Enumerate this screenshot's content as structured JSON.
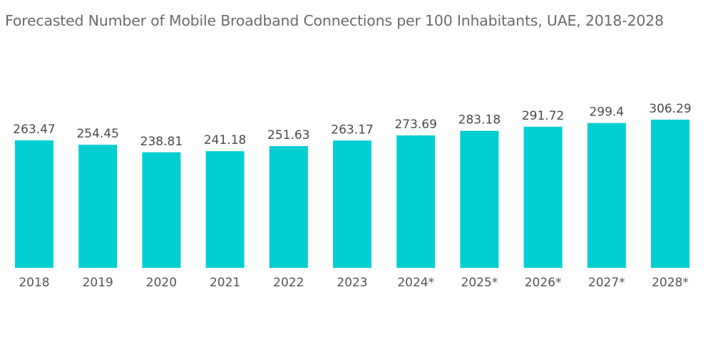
{
  "chart_data": {
    "type": "bar",
    "title": "Forecasted Number of Mobile Broadband Connections per 100 Inhabitants, UAE, 2018-2028",
    "xlabel": "",
    "ylabel": "",
    "categories": [
      "2018",
      "2019",
      "2020",
      "2021",
      "2022",
      "2023",
      "2024*",
      "2025*",
      "2026*",
      "2027*",
      "2028*"
    ],
    "values": [
      263.47,
      254.45,
      238.81,
      241.18,
      251.63,
      263.17,
      273.69,
      283.18,
      291.72,
      299.4,
      306.29
    ],
    "value_labels": [
      "263.47",
      "254.45",
      "238.81",
      "241.18",
      "251.63",
      "263.17",
      "273.69",
      "283.18",
      "291.72",
      "299.4",
      "306.29"
    ],
    "ylim": [
      0,
      306.29
    ],
    "grid": false,
    "legend": "none",
    "bar_color": "#00CED1"
  }
}
